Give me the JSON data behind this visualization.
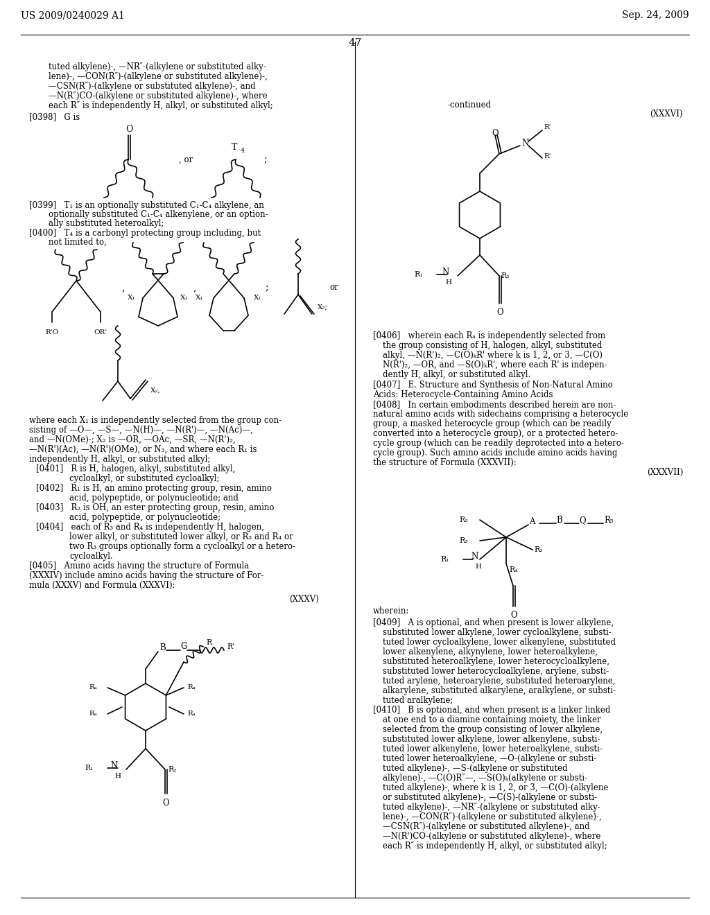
{
  "header_left": "US 2009/0240029 A1",
  "header_right": "Sep. 24, 2009",
  "page_number": "47",
  "bg": "#ffffff"
}
